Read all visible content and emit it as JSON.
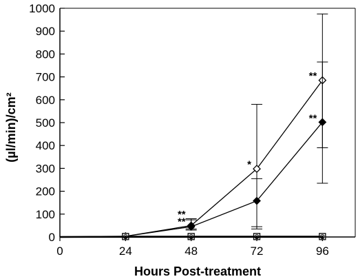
{
  "chart_data": {
    "type": "line",
    "xlabel": "Hours Post-treatment",
    "ylabel": "(µl/min)/cm²",
    "xlim": [
      0,
      108
    ],
    "ylim": [
      0,
      1000
    ],
    "xticks": [
      0,
      24,
      48,
      72,
      96
    ],
    "yticks": [
      0,
      100,
      200,
      300,
      400,
      500,
      600,
      700,
      800,
      900,
      1000
    ],
    "grid": false,
    "legend": "none",
    "series": [
      {
        "marker": "open-diamond",
        "x": [
          0,
          24,
          48,
          72,
          96
        ],
        "y": [
          0,
          3,
          50,
          298,
          685
        ],
        "err_low": [
          0,
          0,
          35,
          45,
          390
        ],
        "err_high": [
          0,
          0,
          80,
          580,
          975
        ]
      },
      {
        "marker": "filled-diamond",
        "x": [
          0,
          24,
          48,
          72,
          96
        ],
        "y": [
          0,
          3,
          45,
          158,
          502
        ],
        "err_low": [
          0,
          0,
          30,
          35,
          235
        ],
        "err_high": [
          0,
          0,
          75,
          255,
          765
        ]
      },
      {
        "marker": "open-square",
        "x": [
          0,
          24,
          48,
          72,
          96
        ],
        "y": [
          0,
          2,
          2,
          2,
          2
        ]
      },
      {
        "marker": "open-circle",
        "x": [
          0,
          24,
          48,
          72,
          96
        ],
        "y": [
          0,
          1,
          1,
          1,
          1
        ]
      },
      {
        "marker": "filled-circle",
        "x": [
          0,
          24,
          48,
          72,
          96
        ],
        "y": [
          0,
          0,
          0,
          0,
          0
        ]
      }
    ],
    "annotations": [
      {
        "text": "**",
        "x": 48,
        "y": 100
      },
      {
        "text": "**",
        "x": 48,
        "y": 68
      },
      {
        "text": "*",
        "x": 72,
        "y": 318
      },
      {
        "text": "**",
        "x": 96,
        "y": 705
      },
      {
        "text": "**",
        "x": 96,
        "y": 520
      }
    ]
  }
}
